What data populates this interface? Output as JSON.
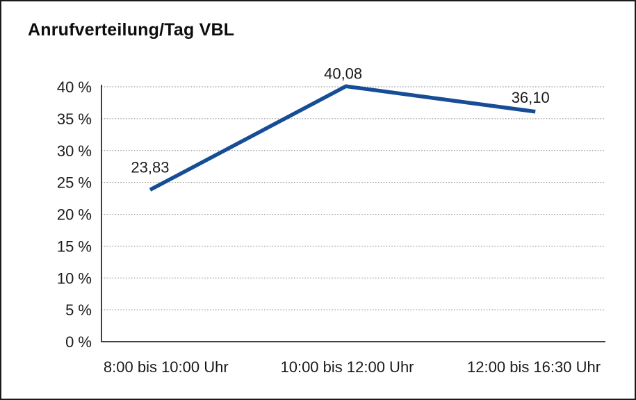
{
  "chart_data": {
    "type": "line",
    "title": "Anrufverteilung/Tag VBL",
    "categories": [
      "8:00 bis 10:00 Uhr",
      "10:00 bis 12:00 Uhr",
      "12:00 bis 16:30 Uhr"
    ],
    "series": [
      {
        "name": "Anrufverteilung",
        "values": [
          23.83,
          40.08,
          36.1
        ]
      }
    ],
    "point_labels": [
      "23,83",
      "40,08",
      "36,10"
    ],
    "y_ticks": [
      0,
      5,
      10,
      15,
      20,
      25,
      30,
      35,
      40
    ],
    "y_tick_labels": [
      "0 %",
      "5 %",
      "10 %",
      "15 %",
      "20 %",
      "25 %",
      "30 %",
      "35 %",
      "40 %"
    ],
    "ylim": [
      0,
      40
    ],
    "xlabel": "",
    "ylabel": "",
    "grid": "horizontal-dotted",
    "legend": "none",
    "line_color": "#164d96",
    "text_color": "#1a1a1a"
  }
}
